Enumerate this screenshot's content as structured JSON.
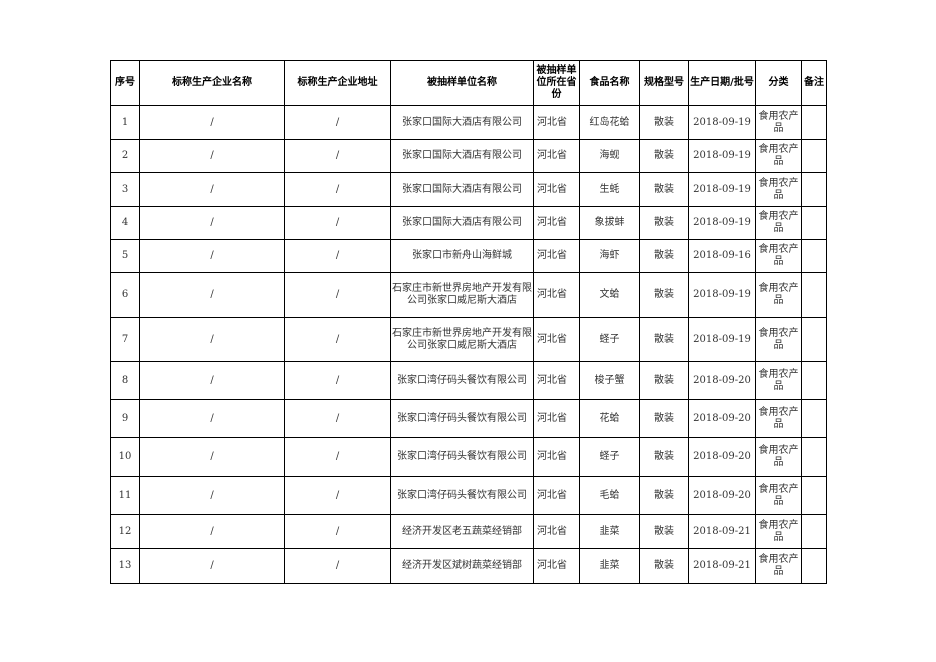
{
  "headers": [
    "序号",
    "标称生产企业名称",
    "标称生产企业地址",
    "被抽样单位名称",
    "被抽样单位所在省份",
    "食品名称",
    "规格型号",
    "生产日期/批号",
    "分类",
    "备注"
  ],
  "rows": [
    [
      "1",
      "/",
      "/",
      "张家口国际大酒店有限公司",
      "河北省",
      "红岛花蛤",
      "散装",
      "2018-09-19",
      "食用农产品",
      ""
    ],
    [
      "2",
      "/",
      "/",
      "张家口国际大酒店有限公司",
      "河北省",
      "海蚬",
      "散装",
      "2018-09-19",
      "食用农产品",
      ""
    ],
    [
      "3",
      "/",
      "/",
      "张家口国际大酒店有限公司",
      "河北省",
      "生蚝",
      "散装",
      "2018-09-19",
      "食用农产品",
      ""
    ],
    [
      "4",
      "/",
      "/",
      "张家口国际大酒店有限公司",
      "河北省",
      "象拔蚌",
      "散装",
      "2018-09-19",
      "食用农产品",
      ""
    ],
    [
      "5",
      "/",
      "/",
      "张家口市新舟山海鲜城",
      "河北省",
      "海虾",
      "散装",
      "2018-09-16",
      "食用农产品",
      ""
    ],
    [
      "6",
      "/",
      "/",
      "石家庄市新世界房地产开发有限公司张家口威尼斯大酒店",
      "河北省",
      "文蛤",
      "散装",
      "2018-09-19",
      "食用农产品",
      ""
    ],
    [
      "7",
      "/",
      "/",
      "石家庄市新世界房地产开发有限公司张家口威尼斯大酒店",
      "河北省",
      "蛏子",
      "散装",
      "2018-09-19",
      "食用农产品",
      ""
    ],
    [
      "8",
      "/",
      "/",
      "张家口湾仔码头餐饮有限公司",
      "河北省",
      "梭子蟹",
      "散装",
      "2018-09-20",
      "食用农产品",
      ""
    ],
    [
      "9",
      "/",
      "/",
      "张家口湾仔码头餐饮有限公司",
      "河北省",
      "花蛤",
      "散装",
      "2018-09-20",
      "食用农产品",
      ""
    ],
    [
      "10",
      "/",
      "/",
      "张家口湾仔码头餐饮有限公司",
      "河北省",
      "蛏子",
      "散装",
      "2018-09-20",
      "食用农产品",
      ""
    ],
    [
      "11",
      "/",
      "/",
      "张家口湾仔码头餐饮有限公司",
      "河北省",
      "毛蛤",
      "散装",
      "2018-09-20",
      "食用农产品",
      ""
    ],
    [
      "12",
      "/",
      "/",
      "经济开发区老五蔬菜经销部",
      "河北省",
      "韭菜",
      "散装",
      "2018-09-21",
      "食用农产品",
      ""
    ],
    [
      "13",
      "/",
      "/",
      "经济开发区斌树蔬菜经销部",
      "河北省",
      "韭菜",
      "散装",
      "2018-09-21",
      "食用农产品",
      ""
    ]
  ]
}
